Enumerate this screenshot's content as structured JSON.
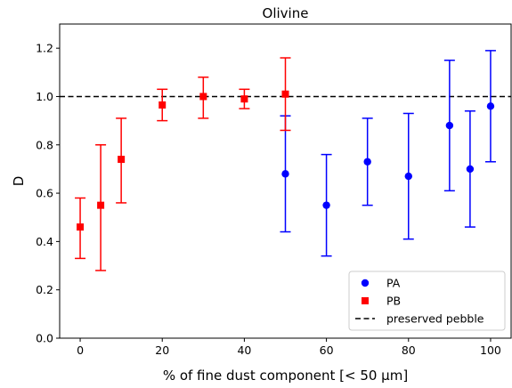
{
  "chart_data": {
    "type": "scatter",
    "title": "Olivine",
    "xlabel": "% of fine dust component [< 50 μm]",
    "ylabel": "D",
    "xlim": [
      -5,
      105
    ],
    "ylim": [
      0.0,
      1.3
    ],
    "x_ticks": [
      "0",
      "20",
      "40",
      "60",
      "80",
      "100"
    ],
    "y_ticks": [
      "0.0",
      "0.2",
      "0.4",
      "0.6",
      "0.8",
      "1.0",
      "1.2"
    ],
    "grid": false,
    "legend_position": "bottom-right",
    "series": [
      {
        "name": "PA",
        "marker": "circle",
        "color": "#0000ff",
        "points": [
          {
            "x": 50,
            "y": 0.68,
            "err_low": 0.44,
            "err_high": 0.92
          },
          {
            "x": 60,
            "y": 0.55,
            "err_low": 0.34,
            "err_high": 0.76
          },
          {
            "x": 70,
            "y": 0.73,
            "err_low": 0.55,
            "err_high": 0.91
          },
          {
            "x": 80,
            "y": 0.67,
            "err_low": 0.41,
            "err_high": 0.93
          },
          {
            "x": 90,
            "y": 0.88,
            "err_low": 0.61,
            "err_high": 1.15
          },
          {
            "x": 95,
            "y": 0.7,
            "err_low": 0.46,
            "err_high": 0.94
          },
          {
            "x": 100,
            "y": 0.96,
            "err_low": 0.73,
            "err_high": 1.19
          }
        ]
      },
      {
        "name": "PB",
        "marker": "square",
        "color": "#ff0000",
        "points": [
          {
            "x": 0,
            "y": 0.46,
            "err_low": 0.33,
            "err_high": 0.58
          },
          {
            "x": 5,
            "y": 0.55,
            "err_low": 0.28,
            "err_high": 0.8
          },
          {
            "x": 10,
            "y": 0.74,
            "err_low": 0.56,
            "err_high": 0.91
          },
          {
            "x": 20,
            "y": 0.965,
            "err_low": 0.9,
            "err_high": 1.03
          },
          {
            "x": 30,
            "y": 1.0,
            "err_low": 0.91,
            "err_high": 1.08
          },
          {
            "x": 40,
            "y": 0.99,
            "err_low": 0.95,
            "err_high": 1.03
          },
          {
            "x": 50,
            "y": 1.01,
            "err_low": 0.86,
            "err_high": 1.16
          }
        ]
      }
    ],
    "reference_line": {
      "name": "preserved pebble",
      "y": 1.0,
      "style": "dashed",
      "color": "#000000"
    }
  }
}
